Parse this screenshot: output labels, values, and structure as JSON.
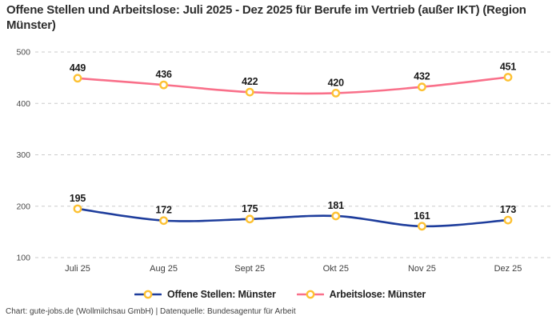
{
  "title": "Offene Stellen und Arbeitslose: Juli 2025 - Dez 2025 für Berufe im Vertrieb (außer IKT) (Region Münster)",
  "footer": "Chart: gute-jobs.de (Wollmilchsau GmbH) | Datenquelle: Bundesagentur für Arbeit",
  "colors": {
    "open_positions_line": "#1e3d9c",
    "unemployed_line": "#f9708a",
    "marker_stroke": "#fdc133",
    "marker_fill": "#ffffff",
    "grid": "#cbcbcb",
    "axis_label": "#4a4a4a",
    "data_label": "#1a1a1a"
  },
  "chart_data": {
    "type": "line",
    "title": "Offene Stellen und Arbeitslose: Juli 2025 - Dez 2025 für Berufe im Vertrieb (außer IKT) (Region Münster)",
    "categories": [
      "Juli 25",
      "Aug 25",
      "Sept 25",
      "Okt 25",
      "Nov 25",
      "Dez 25"
    ],
    "series": [
      {
        "name": "Offene Stellen: Münster",
        "color": "#1e3d9c",
        "values": [
          195,
          172,
          175,
          181,
          161,
          173
        ]
      },
      {
        "name": "Arbeitslose: Münster",
        "color": "#f9708a",
        "values": [
          449,
          436,
          422,
          420,
          432,
          451
        ]
      }
    ],
    "xlabel": "",
    "ylabel": "",
    "ylim": [
      100,
      500
    ],
    "yticks": [
      500,
      400,
      300,
      200,
      100
    ],
    "grid": "dashed-horizontal",
    "legend_position": "bottom",
    "markers": "open-circle-yellow",
    "curve": "smooth",
    "data_labels": true
  }
}
